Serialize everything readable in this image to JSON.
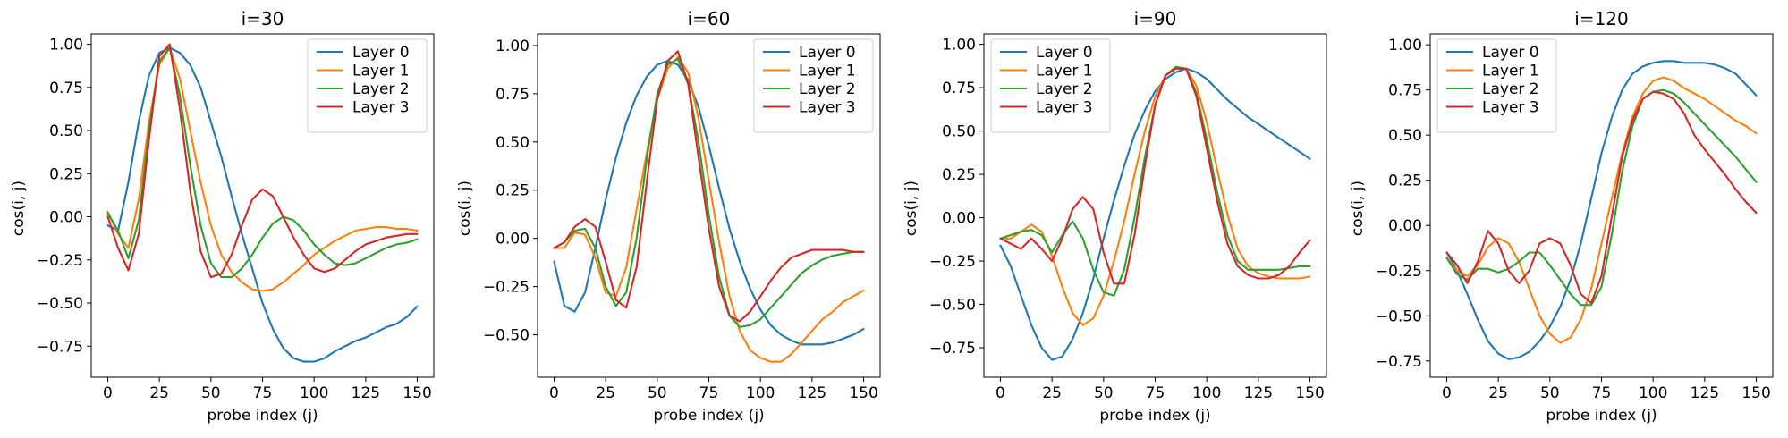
{
  "figure": {
    "series_names": [
      "Layer 0",
      "Layer 1",
      "Layer 2",
      "Layer 3"
    ],
    "colors": {
      "Layer 0": "#1f77b4",
      "Layer 1": "#ff7f0e",
      "Layer 2": "#2ca02c",
      "Layer 3": "#d62728"
    }
  },
  "chart_data": [
    {
      "type": "line",
      "title": "i=30",
      "xlabel": "probe index (j)",
      "ylabel": "cos(i, j)",
      "xlim": [
        -8,
        158
      ],
      "ylim": [
        -0.93,
        1.06
      ],
      "xticks": [
        0,
        25,
        50,
        75,
        100,
        125,
        150
      ],
      "xtick_labels": [
        "0",
        "25",
        "50",
        "75",
        "100",
        "125",
        "150"
      ],
      "yticks": [
        -0.75,
        -0.5,
        -0.25,
        0.0,
        0.25,
        0.5,
        0.75,
        1.0
      ],
      "ytick_labels": [
        "−0.75",
        "−0.50",
        "−0.25",
        "0.00",
        "0.25",
        "0.50",
        "0.75",
        "1.00"
      ],
      "legend": "top-right",
      "x": [
        0,
        5,
        10,
        15,
        20,
        25,
        30,
        35,
        40,
        45,
        50,
        55,
        60,
        65,
        70,
        75,
        80,
        85,
        90,
        95,
        100,
        105,
        110,
        115,
        120,
        125,
        130,
        135,
        140,
        145,
        150
      ],
      "series": [
        {
          "name": "Layer 0",
          "values": [
            -0.05,
            -0.08,
            0.2,
            0.55,
            0.82,
            0.95,
            0.98,
            0.95,
            0.88,
            0.75,
            0.55,
            0.35,
            0.12,
            -0.1,
            -0.3,
            -0.5,
            -0.65,
            -0.76,
            -0.82,
            -0.84,
            -0.84,
            -0.82,
            -0.78,
            -0.75,
            -0.72,
            -0.7,
            -0.67,
            -0.64,
            -0.62,
            -0.58,
            -0.52
          ]
        },
        {
          "name": "Layer 1",
          "values": [
            0.03,
            -0.1,
            -0.18,
            0.1,
            0.55,
            0.88,
            0.98,
            0.8,
            0.5,
            0.2,
            -0.05,
            -0.22,
            -0.32,
            -0.38,
            -0.42,
            -0.43,
            -0.42,
            -0.38,
            -0.33,
            -0.28,
            -0.22,
            -0.18,
            -0.14,
            -0.11,
            -0.08,
            -0.07,
            -0.06,
            -0.06,
            -0.07,
            -0.07,
            -0.08
          ]
        },
        {
          "name": "Layer 2",
          "values": [
            0.02,
            -0.08,
            -0.24,
            -0.02,
            0.5,
            0.9,
            0.98,
            0.7,
            0.3,
            -0.05,
            -0.27,
            -0.35,
            -0.35,
            -0.3,
            -0.22,
            -0.12,
            -0.04,
            0.0,
            -0.02,
            -0.08,
            -0.16,
            -0.22,
            -0.27,
            -0.28,
            -0.27,
            -0.24,
            -0.21,
            -0.18,
            -0.16,
            -0.15,
            -0.13
          ]
        },
        {
          "name": "Layer 3",
          "values": [
            0.0,
            -0.18,
            -0.31,
            -0.1,
            0.45,
            0.93,
            1.0,
            0.62,
            0.15,
            -0.2,
            -0.35,
            -0.33,
            -0.22,
            -0.05,
            0.1,
            0.16,
            0.12,
            0.0,
            -0.12,
            -0.22,
            -0.3,
            -0.32,
            -0.3,
            -0.25,
            -0.2,
            -0.16,
            -0.14,
            -0.12,
            -0.11,
            -0.1,
            -0.1
          ]
        }
      ]
    },
    {
      "type": "line",
      "title": "i=60",
      "xlabel": "probe index (j)",
      "ylabel": "cos(i, j)",
      "xlim": [
        -8,
        158
      ],
      "ylim": [
        -0.72,
        1.06
      ],
      "xticks": [
        0,
        25,
        50,
        75,
        100,
        125,
        150
      ],
      "xtick_labels": [
        "0",
        "25",
        "50",
        "75",
        "100",
        "125",
        "150"
      ],
      "yticks": [
        -0.5,
        -0.25,
        0.0,
        0.25,
        0.5,
        0.75,
        1.0
      ],
      "ytick_labels": [
        "−0.50",
        "−0.25",
        "0.00",
        "0.25",
        "0.50",
        "0.75",
        "1.00"
      ],
      "legend": "top-right",
      "x": [
        0,
        5,
        10,
        15,
        20,
        25,
        30,
        35,
        40,
        45,
        50,
        55,
        60,
        65,
        70,
        75,
        80,
        85,
        90,
        95,
        100,
        105,
        110,
        115,
        120,
        125,
        130,
        135,
        140,
        145,
        150
      ],
      "series": [
        {
          "name": "Layer 0",
          "values": [
            -0.12,
            -0.35,
            -0.38,
            -0.28,
            -0.05,
            0.2,
            0.42,
            0.6,
            0.74,
            0.84,
            0.9,
            0.92,
            0.9,
            0.82,
            0.68,
            0.48,
            0.26,
            0.05,
            -0.12,
            -0.26,
            -0.37,
            -0.45,
            -0.5,
            -0.53,
            -0.55,
            -0.55,
            -0.55,
            -0.54,
            -0.52,
            -0.5,
            -0.47
          ]
        },
        {
          "name": "Layer 1",
          "values": [
            -0.05,
            -0.05,
            0.03,
            0.02,
            -0.1,
            -0.28,
            -0.3,
            -0.15,
            0.15,
            0.45,
            0.72,
            0.88,
            0.94,
            0.86,
            0.62,
            0.3,
            -0.02,
            -0.3,
            -0.48,
            -0.58,
            -0.62,
            -0.64,
            -0.64,
            -0.6,
            -0.54,
            -0.48,
            -0.42,
            -0.38,
            -0.33,
            -0.3,
            -0.27
          ]
        },
        {
          "name": "Layer 2",
          "values": [
            -0.05,
            -0.02,
            0.04,
            0.05,
            -0.05,
            -0.25,
            -0.35,
            -0.28,
            0.0,
            0.42,
            0.75,
            0.9,
            0.93,
            0.8,
            0.5,
            0.12,
            -0.2,
            -0.4,
            -0.46,
            -0.45,
            -0.42,
            -0.36,
            -0.3,
            -0.24,
            -0.18,
            -0.14,
            -0.11,
            -0.09,
            -0.08,
            -0.07,
            -0.07
          ]
        },
        {
          "name": "Layer 3",
          "values": [
            -0.05,
            -0.02,
            0.06,
            0.1,
            0.06,
            -0.12,
            -0.32,
            -0.36,
            -0.15,
            0.3,
            0.72,
            0.92,
            0.97,
            0.8,
            0.42,
            0.05,
            -0.25,
            -0.4,
            -0.43,
            -0.38,
            -0.3,
            -0.22,
            -0.15,
            -0.1,
            -0.08,
            -0.06,
            -0.06,
            -0.06,
            -0.06,
            -0.07,
            -0.07
          ]
        }
      ]
    },
    {
      "type": "line",
      "title": "i=90",
      "xlabel": "probe index (j)",
      "ylabel": "cos(i, j)",
      "xlim": [
        -8,
        158
      ],
      "ylim": [
        -0.92,
        1.06
      ],
      "xticks": [
        0,
        25,
        50,
        75,
        100,
        125,
        150
      ],
      "xtick_labels": [
        "0",
        "25",
        "50",
        "75",
        "100",
        "125",
        "150"
      ],
      "yticks": [
        -0.75,
        -0.5,
        -0.25,
        0.0,
        0.25,
        0.5,
        0.75,
        1.0
      ],
      "ytick_labels": [
        "−0.75",
        "−0.50",
        "−0.25",
        "0.00",
        "0.25",
        "0.50",
        "0.75",
        "1.00"
      ],
      "legend": "top-left",
      "x": [
        0,
        5,
        10,
        15,
        20,
        25,
        30,
        35,
        40,
        45,
        50,
        55,
        60,
        65,
        70,
        75,
        80,
        85,
        90,
        95,
        100,
        105,
        110,
        115,
        120,
        125,
        130,
        135,
        140,
        145,
        150
      ],
      "series": [
        {
          "name": "Layer 0",
          "values": [
            -0.16,
            -0.28,
            -0.45,
            -0.62,
            -0.75,
            -0.82,
            -0.8,
            -0.7,
            -0.55,
            -0.35,
            -0.12,
            0.1,
            0.3,
            0.48,
            0.62,
            0.73,
            0.8,
            0.84,
            0.86,
            0.84,
            0.8,
            0.74,
            0.68,
            0.63,
            0.58,
            0.54,
            0.5,
            0.46,
            0.42,
            0.38,
            0.34
          ]
        },
        {
          "name": "Layer 1",
          "values": [
            -0.12,
            -0.12,
            -0.08,
            -0.04,
            -0.08,
            -0.22,
            -0.4,
            -0.55,
            -0.62,
            -0.58,
            -0.45,
            -0.25,
            -0.02,
            0.25,
            0.5,
            0.7,
            0.82,
            0.87,
            0.86,
            0.76,
            0.55,
            0.28,
            0.02,
            -0.18,
            -0.28,
            -0.32,
            -0.34,
            -0.35,
            -0.35,
            -0.35,
            -0.34
          ]
        },
        {
          "name": "Layer 2",
          "values": [
            -0.12,
            -0.1,
            -0.08,
            -0.07,
            -0.1,
            -0.2,
            -0.1,
            -0.02,
            -0.12,
            -0.3,
            -0.43,
            -0.45,
            -0.3,
            0.0,
            0.35,
            0.65,
            0.82,
            0.87,
            0.86,
            0.72,
            0.45,
            0.15,
            -0.1,
            -0.25,
            -0.3,
            -0.3,
            -0.3,
            -0.3,
            -0.29,
            -0.28,
            -0.28
          ]
        },
        {
          "name": "Layer 3",
          "values": [
            -0.12,
            -0.15,
            -0.18,
            -0.12,
            -0.18,
            -0.25,
            -0.12,
            0.05,
            0.12,
            0.05,
            -0.2,
            -0.38,
            -0.38,
            -0.1,
            0.3,
            0.65,
            0.82,
            0.86,
            0.86,
            0.7,
            0.4,
            0.1,
            -0.15,
            -0.28,
            -0.33,
            -0.35,
            -0.35,
            -0.33,
            -0.28,
            -0.2,
            -0.13
          ]
        }
      ]
    },
    {
      "type": "line",
      "title": "i=120",
      "xlabel": "probe index (j)",
      "ylabel": "cos(i, j)",
      "xlim": [
        -8,
        158
      ],
      "ylim": [
        -0.84,
        1.06
      ],
      "xticks": [
        0,
        25,
        50,
        75,
        100,
        125,
        150
      ],
      "xtick_labels": [
        "0",
        "25",
        "50",
        "75",
        "100",
        "125",
        "150"
      ],
      "yticks": [
        -0.75,
        -0.5,
        -0.25,
        0.0,
        0.25,
        0.5,
        0.75,
        1.0
      ],
      "ytick_labels": [
        "−0.75",
        "−0.50",
        "−0.25",
        "0.00",
        "0.25",
        "0.50",
        "0.75",
        "1.00"
      ],
      "legend": "top-left",
      "x": [
        0,
        5,
        10,
        15,
        20,
        25,
        30,
        35,
        40,
        45,
        50,
        55,
        60,
        65,
        70,
        75,
        80,
        85,
        90,
        95,
        100,
        105,
        110,
        115,
        120,
        125,
        130,
        135,
        140,
        145,
        150
      ],
      "series": [
        {
          "name": "Layer 0",
          "values": [
            -0.15,
            -0.25,
            -0.38,
            -0.52,
            -0.64,
            -0.71,
            -0.74,
            -0.73,
            -0.7,
            -0.64,
            -0.56,
            -0.45,
            -0.3,
            -0.1,
            0.15,
            0.4,
            0.6,
            0.75,
            0.84,
            0.88,
            0.9,
            0.91,
            0.91,
            0.9,
            0.9,
            0.9,
            0.89,
            0.87,
            0.84,
            0.78,
            0.72
          ]
        },
        {
          "name": "Layer 1",
          "values": [
            -0.18,
            -0.25,
            -0.28,
            -0.22,
            -0.12,
            -0.07,
            -0.1,
            -0.2,
            -0.35,
            -0.5,
            -0.6,
            -0.65,
            -0.62,
            -0.52,
            -0.35,
            -0.1,
            0.15,
            0.4,
            0.6,
            0.73,
            0.8,
            0.82,
            0.8,
            0.76,
            0.73,
            0.7,
            0.66,
            0.62,
            0.58,
            0.55,
            0.51
          ]
        },
        {
          "name": "Layer 2",
          "values": [
            -0.18,
            -0.27,
            -0.3,
            -0.24,
            -0.24,
            -0.26,
            -0.24,
            -0.2,
            -0.15,
            -0.15,
            -0.22,
            -0.3,
            -0.38,
            -0.44,
            -0.44,
            -0.34,
            -0.05,
            0.3,
            0.55,
            0.7,
            0.74,
            0.75,
            0.73,
            0.68,
            0.62,
            0.56,
            0.5,
            0.44,
            0.38,
            0.31,
            0.24
          ]
        },
        {
          "name": "Layer 3",
          "values": [
            -0.15,
            -0.22,
            -0.32,
            -0.2,
            -0.03,
            -0.1,
            -0.25,
            -0.32,
            -0.25,
            -0.1,
            -0.07,
            -0.1,
            -0.22,
            -0.38,
            -0.43,
            -0.28,
            0.05,
            0.38,
            0.58,
            0.7,
            0.74,
            0.73,
            0.7,
            0.62,
            0.5,
            0.42,
            0.35,
            0.28,
            0.2,
            0.13,
            0.07
          ]
        }
      ]
    }
  ]
}
